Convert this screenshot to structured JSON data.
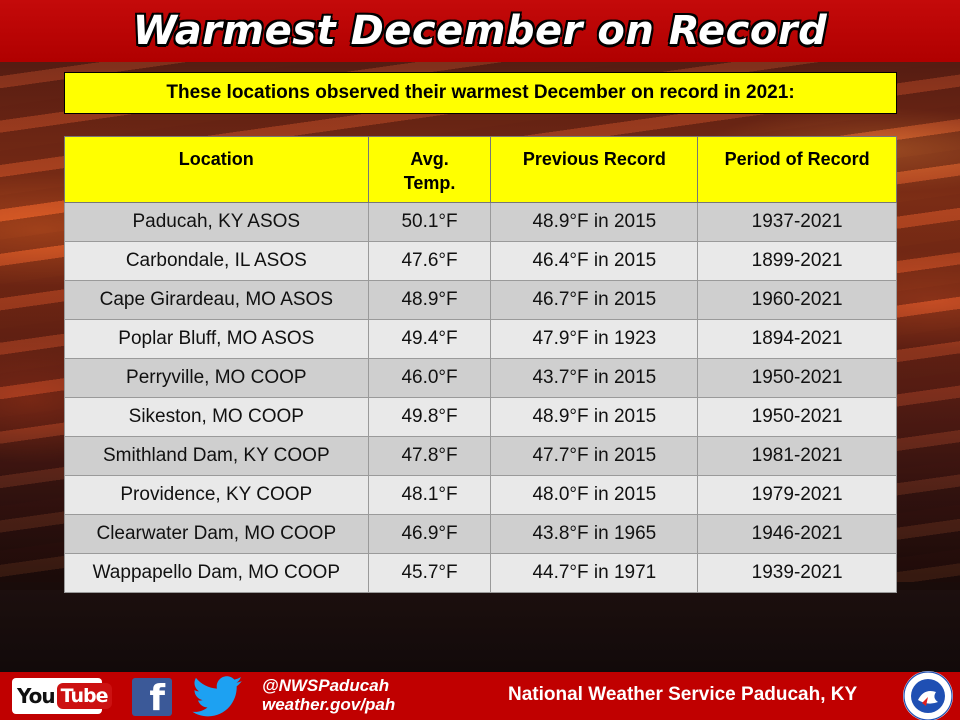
{
  "header": {
    "title": "Warmest December on Record"
  },
  "subtitle": "These locations observed their warmest December on record in 2021:",
  "table": {
    "headers": {
      "location": "Location",
      "avg_temp_line1": "Avg.",
      "avg_temp_line2": "Temp.",
      "previous_record": "Previous Record",
      "period_of_record": "Period of Record"
    },
    "rows": [
      [
        "Paducah, KY ASOS",
        "50.1°F",
        "48.9°F in 2015",
        "1937-2021"
      ],
      [
        "Carbondale, IL ASOS",
        "47.6°F",
        "46.4°F in 2015",
        "1899-2021"
      ],
      [
        "Cape Girardeau, MO ASOS",
        "48.9°F",
        "46.7°F in 2015",
        "1960-2021"
      ],
      [
        "Poplar Bluff, MO ASOS",
        "49.4°F",
        "47.9°F in 1923",
        "1894-2021"
      ],
      [
        "Perryville, MO COOP",
        "46.0°F",
        "43.7°F in 2015",
        "1950-2021"
      ],
      [
        "Sikeston, MO COOP",
        "49.8°F",
        "48.9°F in 2015",
        "1950-2021"
      ],
      [
        "Smithland Dam, KY COOP",
        "47.8°F",
        "47.7°F in 2015",
        "1981-2021"
      ],
      [
        "Providence, KY COOP",
        "48.1°F",
        "48.0°F in 2015",
        "1979-2021"
      ],
      [
        "Clearwater Dam, MO COOP",
        "46.9°F",
        "43.8°F in 1965",
        "1946-2021"
      ],
      [
        "Wappapello Dam, MO COOP",
        "45.7°F",
        "44.7°F in 1971",
        "1939-2021"
      ]
    ]
  },
  "footer": {
    "youtube_you": "You",
    "youtube_tube": "Tube",
    "facebook_glyph": "f",
    "handle": "@NWSPaducah",
    "website": "weather.gov/pah",
    "office_name": "National Weather Service Paducah, KY",
    "icons": [
      "youtube-icon",
      "facebook-icon",
      "twitter-icon",
      "nws-logo-icon"
    ]
  },
  "colors": {
    "header_red": "#c00000",
    "table_header_yellow": "#ffff00",
    "row_dark": "#cfcfcf",
    "row_light": "#e9e9e9",
    "facebook_blue": "#3b5998",
    "twitter_blue": "#1da1f2"
  }
}
